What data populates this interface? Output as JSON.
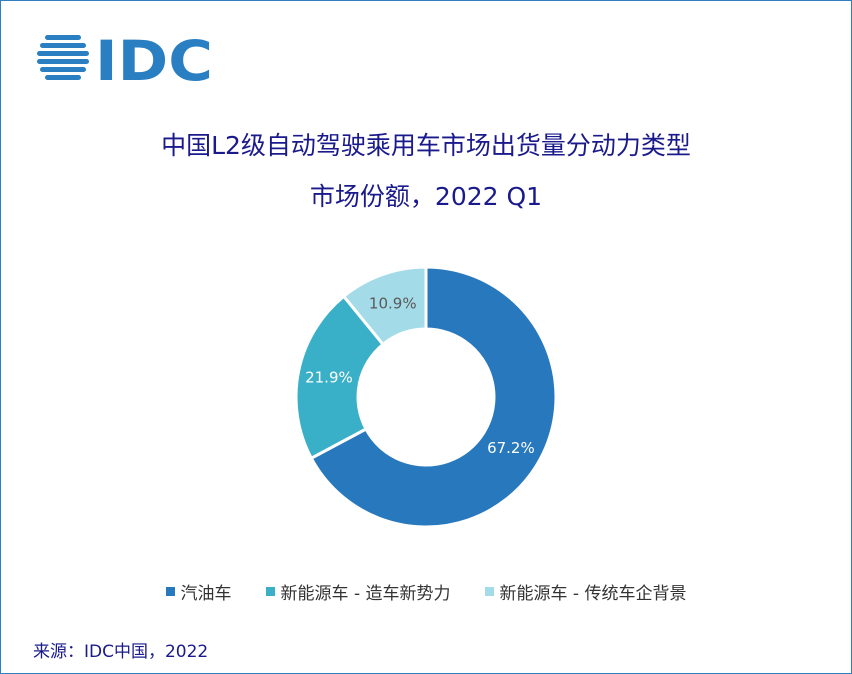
{
  "logo": {
    "text": "IDC"
  },
  "title": {
    "line1": "中国L2级自动驾驶乘用车市场出货量分动力类型",
    "line2": "市场份额，2022 Q1"
  },
  "chart_data": {
    "type": "pie",
    "variant": "donut",
    "title": "中国L2级自动驾驶乘用车市场出货量分动力类型市场份额，2022 Q1",
    "categories": [
      "汽油车",
      "新能源车 - 造车新势力",
      "新能源车 - 传统车企背景"
    ],
    "values": [
      67.2,
      21.9,
      10.9
    ],
    "labels": [
      "67.2%",
      "21.9%",
      "10.9%"
    ],
    "colors": [
      "#2878be",
      "#3aafc8",
      "#a4dbe8"
    ],
    "label_colors": [
      "#ffffff",
      "#ffffff",
      "#5a5a5a"
    ],
    "legend_position": "bottom"
  },
  "source": "来源：IDC中国，2022"
}
